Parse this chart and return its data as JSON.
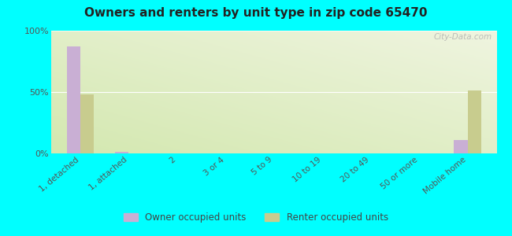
{
  "title": "Owners and renters by unit type in zip code 65470",
  "categories": [
    "1, detached",
    "1, attached",
    "2",
    "3 or 4",
    "5 to 9",
    "10 to 19",
    "20 to 49",
    "50 or more",
    "Mobile home"
  ],
  "owner_values": [
    87,
    1,
    0,
    0,
    0,
    0,
    0,
    0,
    11
  ],
  "renter_values": [
    48,
    0,
    0,
    0,
    0,
    0,
    0,
    0,
    51
  ],
  "owner_color": "#c9afd4",
  "renter_color": "#c8cc8e",
  "ylim": [
    0,
    100
  ],
  "yticks": [
    0,
    50,
    100
  ],
  "ytick_labels": [
    "0%",
    "50%",
    "100%"
  ],
  "outer_background": "#00ffff",
  "bar_width": 0.28,
  "legend_owner": "Owner occupied units",
  "legend_renter": "Renter occupied units",
  "watermark": "City-Data.com"
}
